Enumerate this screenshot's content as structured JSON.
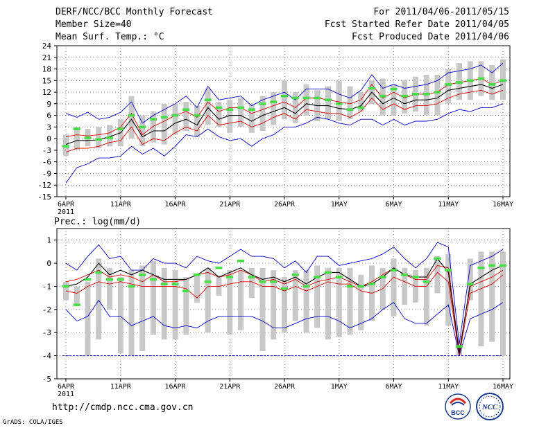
{
  "header": {
    "title": "DERF/NCC/BCC Monthly Forecast",
    "member_size": "Member Size=40",
    "variable": "Mean Surf. Temp.: °C",
    "period": "For 2011/04/06-2011/05/15",
    "fcst_started": "Fcst Started Refer Date 2011/04/05",
    "fcst_produced": "Fcst Produced Date 2011/04/06"
  },
  "footer": {
    "url": "http://cmdp.ncc.cma.gov.cn",
    "grads": "GrADS: COLA/IGES"
  },
  "logos": [
    {
      "name": "bcc-logo",
      "text": "BCC"
    },
    {
      "name": "ncc-logo",
      "text": "NCC"
    }
  ],
  "colors": {
    "max_min": "#0000cc",
    "spread": "#dd0000",
    "mean": "#000000",
    "box": "#c8c8c8",
    "median": "#44dd44"
  },
  "chart_data": [
    {
      "type": "box",
      "title": "Mean Surf. Temp.: °C",
      "ylim": [
        -15,
        24
      ],
      "yticks": [
        -15,
        -12,
        -9,
        -6,
        -3,
        0,
        3,
        6,
        9,
        12,
        15,
        18,
        21,
        24
      ],
      "xlim": [
        0,
        40
      ],
      "xticks": [
        {
          "x": 0.5,
          "label": "6APR"
        },
        {
          "x": 5.5,
          "label": "11APR"
        },
        {
          "x": 10.5,
          "label": "16APR"
        },
        {
          "x": 15.5,
          "label": "21APR"
        },
        {
          "x": 20.5,
          "label": "26APR"
        },
        {
          "x": 25.5,
          "label": "1MAY"
        },
        {
          "x": 30.5,
          "label": "6MAY"
        },
        {
          "x": 35.5,
          "label": "11MAY"
        },
        {
          "x": 40.5,
          "label": "16MAY"
        }
      ],
      "year_label": "2011",
      "grid": "dotted",
      "series": [
        {
          "name": "max",
          "color": "#0000cc",
          "values": [
            6.5,
            5.5,
            6.8,
            5,
            5.5,
            6.8,
            9.5,
            4,
            6,
            7.5,
            9,
            11,
            8,
            13.5,
            10,
            10.5,
            11,
            8.5,
            10,
            11,
            12,
            10,
            12.8,
            12.8,
            12.8,
            11.5,
            10.5,
            12.5,
            16.5,
            13,
            14,
            13,
            13.5,
            14,
            15,
            17,
            17.5,
            18,
            19,
            17,
            19.5
          ]
        },
        {
          "name": "upper",
          "color": "#dd0000",
          "values": [
            0.5,
            1,
            0.7,
            1,
            1.5,
            3,
            6.5,
            1,
            3.2,
            4.5,
            6,
            7,
            5.5,
            9.5,
            7,
            8,
            8,
            6.5,
            7.5,
            8.5,
            9.5,
            8,
            10.5,
            10.5,
            10,
            9.5,
            9,
            10,
            14,
            10.5,
            12,
            10.5,
            11.5,
            11.5,
            12,
            14,
            14.5,
            15,
            15.5,
            14,
            15
          ]
        },
        {
          "name": "mean",
          "color": "#000000",
          "values": [
            -1.5,
            -0.5,
            -0.5,
            -0.3,
            0.5,
            1.5,
            5,
            0.5,
            2,
            2,
            4,
            5,
            3.5,
            8,
            5,
            6,
            6,
            4.5,
            6,
            7,
            8,
            6.5,
            9,
            8.5,
            8.5,
            7.8,
            7.5,
            8.5,
            12,
            9,
            10.5,
            9,
            10,
            10,
            10.5,
            12.5,
            13,
            13.5,
            14,
            13,
            14
          ]
        },
        {
          "name": "lower",
          "color": "#dd0000",
          "values": [
            -3.5,
            -2.5,
            -2.5,
            -2,
            -1,
            -0.5,
            3,
            -1.5,
            0,
            -0.5,
            1.5,
            3,
            2,
            6,
            3.5,
            4,
            4.5,
            3,
            4,
            5.5,
            6.5,
            5,
            7.5,
            7,
            6.5,
            6.5,
            5.5,
            7,
            10.5,
            7.5,
            9,
            7.5,
            8.5,
            8.5,
            9,
            10.5,
            11.5,
            12,
            12.5,
            11.5,
            12.5
          ]
        },
        {
          "name": "min",
          "color": "#0000cc",
          "values": [
            -11.5,
            -7.5,
            -6.5,
            -5,
            -5,
            -4.5,
            -2,
            -4,
            -2.5,
            -4.5,
            -2,
            1,
            0.5,
            2.5,
            0.5,
            -0.5,
            0,
            -2,
            0,
            1,
            3,
            3,
            4,
            5.5,
            5,
            4,
            3.5,
            5,
            5,
            3.5,
            5,
            3.5,
            4.5,
            4.5,
            5,
            6.5,
            7.5,
            7,
            8,
            8,
            9
          ]
        },
        {
          "name": "box_top",
          "color": "#c8c8c8",
          "values": [
            1,
            3,
            2.5,
            3,
            3.5,
            5,
            11,
            6,
            7,
            9,
            9,
            9.5,
            8.5,
            13,
            9.5,
            10,
            10.5,
            9,
            11,
            12,
            15,
            12,
            14,
            12.5,
            13.5,
            15,
            13.5,
            12,
            15,
            15.5,
            14,
            15,
            16,
            16.5,
            16.5,
            18,
            19.5,
            20,
            20,
            19,
            20.5
          ]
        },
        {
          "name": "box_bottom",
          "color": "#c8c8c8",
          "values": [
            -4.5,
            -3,
            -2,
            -2.5,
            -2,
            -2,
            0,
            -2,
            -1,
            -1.5,
            1,
            2,
            0.5,
            3.5,
            3,
            1.5,
            3,
            1.5,
            2,
            3.5,
            5,
            4,
            6,
            4.5,
            5,
            4.5,
            5,
            7,
            9,
            6,
            6,
            6.5,
            7,
            6,
            6,
            9,
            10,
            10,
            11,
            10,
            10
          ]
        },
        {
          "name": "median",
          "color": "#44dd44",
          "values": [
            -2,
            2.5,
            0.2,
            -0.2,
            0.2,
            2.5,
            6,
            3,
            5,
            5.5,
            6,
            7.5,
            6,
            10,
            8,
            7.5,
            8,
            7.5,
            9,
            9.5,
            11,
            10.5,
            10.5,
            10.5,
            10,
            9,
            7.5,
            8,
            13,
            11,
            12.8,
            11,
            11.5,
            11.5,
            12,
            14,
            14.5,
            15,
            15.5,
            14,
            15
          ]
        }
      ]
    },
    {
      "type": "box",
      "title": "Prec.: log(mm/d)",
      "ylim": [
        -5,
        1.5
      ],
      "yticks": [
        -5,
        -4,
        -3,
        -2,
        -1,
        0,
        1
      ],
      "xlim": [
        0,
        40
      ],
      "xticks": [
        {
          "x": 0.5,
          "label": "6APR"
        },
        {
          "x": 5.5,
          "label": "11APR"
        },
        {
          "x": 10.5,
          "label": "16APR"
        },
        {
          "x": 15.5,
          "label": "21APR"
        },
        {
          "x": 20.5,
          "label": "26APR"
        },
        {
          "x": 25.5,
          "label": "1MAY"
        },
        {
          "x": 30.5,
          "label": "6MAY"
        },
        {
          "x": 35.5,
          "label": "11MAY"
        },
        {
          "x": 40.5,
          "label": "16MAY"
        }
      ],
      "year_label": "2011",
      "grid": "dotted",
      "series": [
        {
          "name": "max",
          "color": "#0000cc",
          "values": [
            0,
            -0.3,
            0.3,
            0.8,
            0.2,
            0.3,
            -0.3,
            -0.3,
            0.2,
            0,
            0,
            -0.2,
            0.3,
            0.1,
            0,
            0.3,
            0.6,
            0.3,
            0.3,
            0.2,
            -0.2,
            0.1,
            -0.4,
            0.3,
            0.3,
            -0.1,
            0,
            0.1,
            0.2,
            0.4,
            0.7,
            0.2,
            -0.2,
            0.2,
            0.9,
            0.7,
            -3.5,
            -0.1,
            0.1,
            0.3,
            0.6
          ]
        },
        {
          "name": "upper",
          "color": "#dd0000",
          "values": [
            -0.8,
            -0.7,
            -0.5,
            -0.3,
            -0.6,
            -0.5,
            -0.6,
            -0.8,
            -0.5,
            -0.8,
            -0.8,
            -0.7,
            -0.5,
            -0.4,
            -0.6,
            -0.5,
            -0.3,
            -0.5,
            -0.8,
            -0.7,
            -0.9,
            -0.7,
            -1,
            -0.8,
            -0.7,
            -0.6,
            -0.8,
            -1,
            -0.8,
            -0.5,
            -0.2,
            -0.5,
            -0.7,
            -0.7,
            -0.1,
            -0.2,
            -3.8,
            -1,
            -0.8,
            -0.6,
            -0.3
          ]
        },
        {
          "name": "mean",
          "color": "#000000",
          "values": [
            -1,
            -0.9,
            -0.6,
            0,
            -0.5,
            -0.3,
            -0.5,
            -0.3,
            -0.5,
            -0.7,
            -0.7,
            -0.7,
            -0.5,
            -0.2,
            -0.6,
            -0.4,
            -0.2,
            -0.5,
            -0.7,
            -0.6,
            -0.8,
            -0.6,
            -0.9,
            -0.6,
            -0.4,
            -0.4,
            -0.7,
            -1,
            -0.9,
            -0.6,
            -0.2,
            -0.5,
            -0.6,
            -0.6,
            0.2,
            -0.4,
            -3.9,
            -0.9,
            -0.6,
            -0.3,
            -0.1
          ]
        },
        {
          "name": "lower",
          "color": "#dd0000",
          "values": [
            -1.2,
            -1.3,
            -1,
            -0.8,
            -0.9,
            -0.8,
            -0.9,
            -1,
            -1,
            -1,
            -1,
            -1.1,
            -1.5,
            -1,
            -1,
            -0.9,
            -0.8,
            -0.8,
            -1,
            -1,
            -1.2,
            -1,
            -1.2,
            -1,
            -0.8,
            -0.9,
            -0.9,
            -1.2,
            -1.3,
            -1.1,
            -0.6,
            -0.8,
            -1,
            -1,
            -0.4,
            -0.8,
            -4,
            -1.3,
            -1.1,
            -0.9,
            -0.5
          ]
        },
        {
          "name": "min",
          "color": "#0000cc",
          "values": [
            -2,
            -2.5,
            -2.3,
            -1.6,
            -2.3,
            -2.3,
            -2.7,
            -2.5,
            -2.3,
            -2.7,
            -2.8,
            -2.7,
            -2.8,
            -2.5,
            -2.3,
            -2.3,
            -2.3,
            -2.3,
            -2.5,
            -2.8,
            -2.8,
            -2.6,
            -2.4,
            -2.3,
            -2.3,
            -2.5,
            -2.8,
            -2.6,
            -2.4,
            -2,
            -1.7,
            -2.4,
            -2.6,
            -2.6,
            -2.2,
            -1.8,
            -4,
            -2.4,
            -2.2,
            -2,
            -1.7
          ]
        },
        {
          "name": "box_top",
          "color": "#c8c8c8",
          "values": [
            -0.8,
            -1,
            -0.8,
            0.2,
            -0.2,
            -0.6,
            -0.3,
            -0.1,
            0.1,
            -0.2,
            -0.3,
            -0.6,
            -0.5,
            -0.2,
            -0.6,
            -0.3,
            -0.3,
            -0.2,
            -0.2,
            -0.3,
            -0.6,
            -0.3,
            -0.3,
            -0.1,
            -0.2,
            -0.2,
            -0.2,
            -0.5,
            -0.1,
            -0.2,
            0.2,
            -0.2,
            -0.3,
            -0.2,
            0.3,
            0.4,
            -3.5,
            0.2,
            0.5,
            0.5,
            0.5
          ]
        },
        {
          "name": "box_bottom",
          "color": "#c8c8c8",
          "values": [
            -1.6,
            -1.8,
            -4,
            -3.3,
            -2,
            -3.9,
            -4,
            -3.8,
            -3.1,
            -3.3,
            -3.3,
            -3.1,
            -1.7,
            -3,
            -1.4,
            -3.1,
            -2.9,
            -1.5,
            -3.8,
            -3.3,
            -3,
            -2.5,
            -3,
            -2.8,
            -3.3,
            -3.2,
            -3.1,
            -2.9,
            -2.5,
            -2,
            -2.3,
            -1.8,
            -1.7,
            -2.7,
            -1.3,
            -2.7,
            -4,
            -1.6,
            -3.6,
            -3.4,
            -4
          ]
        },
        {
          "name": "median",
          "color": "#44dd44",
          "values": [
            -1,
            -1.8,
            -0.7,
            -0.4,
            -0.7,
            -0.7,
            -1,
            -0.5,
            -0.7,
            -0.9,
            -0.9,
            -1.2,
            -0.5,
            -0.8,
            -0.2,
            -0.6,
            0.1,
            -0.6,
            -0.8,
            -0.8,
            -1.1,
            -0.5,
            -1,
            -0.6,
            -0.4,
            -0.6,
            -1,
            -1,
            -0.9,
            -0.6,
            -0.3,
            -0.5,
            -0.6,
            -0.8,
            0.2,
            -0.3,
            -3.6,
            -0.9,
            -0.2,
            -0.1,
            -0.1
          ]
        }
      ]
    }
  ]
}
